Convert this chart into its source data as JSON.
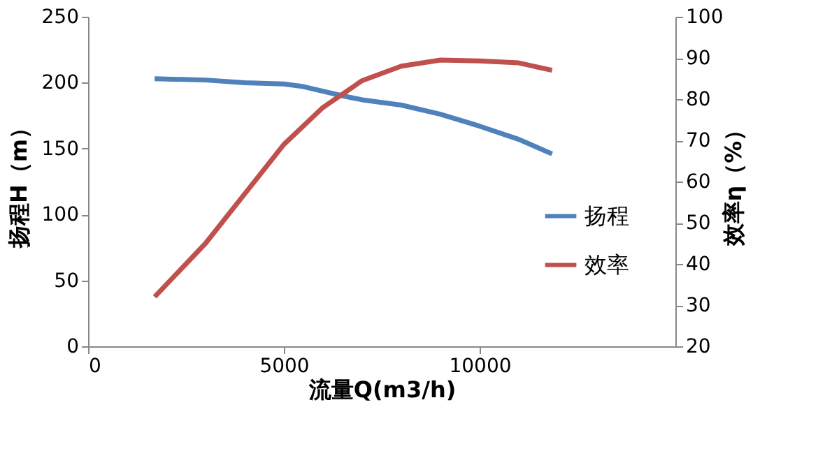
{
  "chart_data": {
    "type": "line",
    "xlabel": "流量Q(m3/h)",
    "ylabel": "扬程H（m）",
    "y2label": "效率η（%）",
    "xlim": [
      0,
      15000
    ],
    "xticks": [
      0,
      5000,
      10000
    ],
    "ylim": [
      0,
      250
    ],
    "yticks": [
      0,
      50,
      100,
      150,
      200,
      250
    ],
    "y2lim": [
      20,
      100
    ],
    "y2ticks": [
      20,
      30,
      40,
      50,
      60,
      70,
      80,
      90,
      100
    ],
    "grid": false,
    "legend": "right",
    "marker": "none",
    "line_style": "solid",
    "series": [
      {
        "name": "扬程",
        "color": "#4f81bd",
        "x": [
          1700,
          3000,
          4000,
          5000,
          5500,
          6500,
          7000,
          8000,
          9000,
          10000,
          11000,
          11850
        ],
        "values": [
          203,
          202,
          200,
          199,
          197,
          190,
          187,
          183,
          176,
          167,
          157,
          146
        ]
      },
      {
        "name": "效率",
        "color": "#c0504d",
        "axis": "y2",
        "x": [
          1700,
          2500,
          3000,
          4000,
          5000,
          6000,
          7000,
          8000,
          9000,
          10000,
          11000,
          11850
        ],
        "values": [
          32,
          40,
          45,
          57,
          69,
          78,
          84.5,
          88,
          89.5,
          89.3,
          88.8,
          87
        ]
      }
    ]
  }
}
